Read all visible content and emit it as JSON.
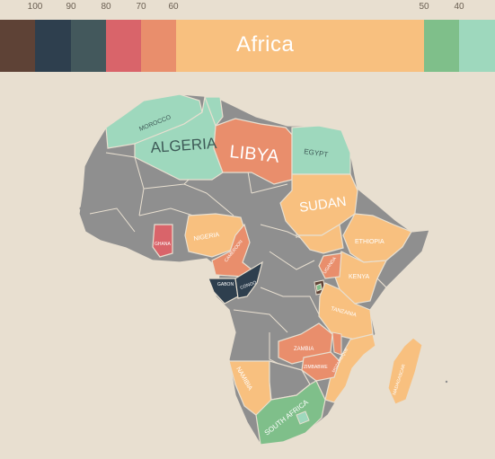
{
  "scale": {
    "labels": [
      "100",
      "90",
      "80",
      "70",
      "60",
      "50",
      "40"
    ],
    "colors": {
      "c100": "#5e4236",
      "c90": "#2e3f4e",
      "c80": "#43585c",
      "c70": "#d9646a",
      "c60": "#e98e6c",
      "c55": "#f8c07f",
      "c50": "#7fbf8a",
      "c40": "#9ed8bd"
    }
  },
  "region": {
    "label": "Africa"
  },
  "map": {
    "countries": {
      "morocco": "MOROCCO",
      "algeria": "ALGERIA",
      "libya": "LIBYA",
      "egypt": "EGYPT",
      "sudan": "SUDAN",
      "ethiopia": "ETHIOPIA",
      "nigeria": "NIGERIA",
      "ghana": "GHANA",
      "cameroon": "CAMEROON",
      "gabon": "GABON",
      "congo": "CONGO",
      "uganda": "UGANDA",
      "kenya": "KENYA",
      "tanzania": "TANZANIA",
      "zambia": "ZAMBIA",
      "zimbabwe": "ZIMBABWE",
      "mozambique": "MOZAMBIQUE",
      "namibia": "NAMIBIA",
      "south_africa": "SOUTH AFRICA",
      "madagascar": "MADAGASCAR"
    }
  }
}
